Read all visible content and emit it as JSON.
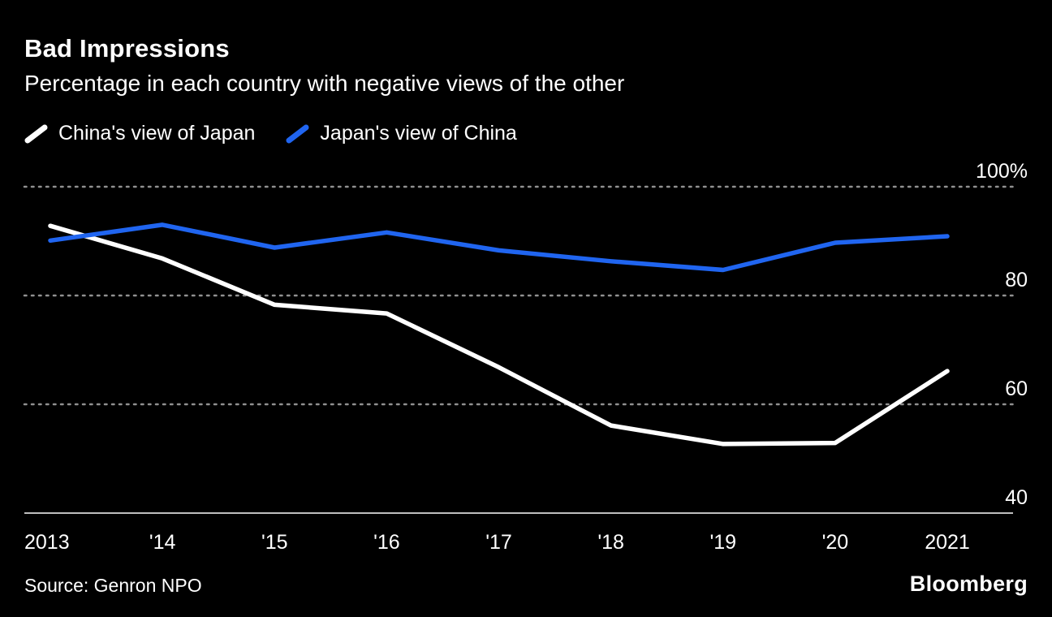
{
  "header": {
    "title": "Bad Impressions",
    "subtitle": "Percentage in each country with negative views of the other"
  },
  "legend": [
    {
      "label": "China's view of Japan",
      "color": "#ffffff"
    },
    {
      "label": "Japan's view of China",
      "color": "#2065f0"
    }
  ],
  "footer": {
    "source": "Source: Genron NPO",
    "brand": "Bloomberg"
  },
  "chart_data": {
    "type": "line",
    "title": "Bad Impressions",
    "subtitle": "Percentage in each country with negative views of the other",
    "categories": [
      "2013",
      "'14",
      "'15",
      "'16",
      "'17",
      "'18",
      "'19",
      "'20",
      "2021"
    ],
    "series": [
      {
        "name": "China's view of Japan",
        "color": "#ffffff",
        "values": [
          92.8,
          86.8,
          78.3,
          76.7,
          66.8,
          56.1,
          52.7,
          52.9,
          66.1
        ]
      },
      {
        "name": "Japan's view of China",
        "color": "#2065f0",
        "values": [
          90.1,
          93.0,
          88.8,
          91.6,
          88.3,
          86.3,
          84.7,
          89.7,
          90.9
        ]
      }
    ],
    "ylim": [
      40,
      100
    ],
    "yticks": [
      {
        "value": 100,
        "label": "100%"
      },
      {
        "value": 80,
        "label": "80"
      },
      {
        "value": 60,
        "label": "60"
      },
      {
        "value": 40,
        "label": "40"
      }
    ],
    "grid": "dotted horizontal gridlines",
    "legend_position": "top",
    "background": "#000000"
  }
}
